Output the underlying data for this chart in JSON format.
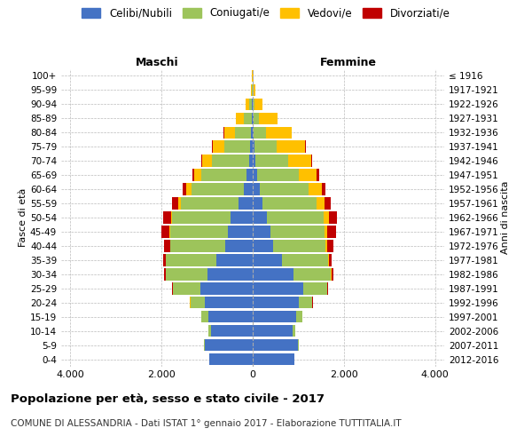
{
  "age_groups": [
    "0-4",
    "5-9",
    "10-14",
    "15-19",
    "20-24",
    "25-29",
    "30-34",
    "35-39",
    "40-44",
    "45-49",
    "50-54",
    "55-59",
    "60-64",
    "65-69",
    "70-74",
    "75-79",
    "80-84",
    "85-89",
    "90-94",
    "95-99",
    "100+"
  ],
  "birth_years": [
    "2012-2016",
    "2007-2011",
    "2002-2006",
    "1997-2001",
    "1992-1996",
    "1987-1991",
    "1982-1986",
    "1977-1981",
    "1972-1976",
    "1967-1971",
    "1962-1966",
    "1957-1961",
    "1952-1956",
    "1947-1951",
    "1942-1946",
    "1937-1941",
    "1932-1936",
    "1927-1931",
    "1922-1926",
    "1917-1921",
    "≤ 1916"
  ],
  "males": {
    "celibi": [
      950,
      1050,
      920,
      980,
      1050,
      1150,
      1000,
      800,
      600,
      550,
      480,
      320,
      200,
      130,
      80,
      60,
      30,
      20,
      10,
      5,
      5
    ],
    "coniugati": [
      5,
      15,
      50,
      150,
      320,
      600,
      900,
      1100,
      1200,
      1250,
      1280,
      1250,
      1150,
      1000,
      820,
      560,
      350,
      170,
      60,
      15,
      3
    ],
    "vedovi": [
      2,
      2,
      2,
      2,
      2,
      4,
      8,
      12,
      15,
      20,
      35,
      60,
      100,
      150,
      200,
      260,
      250,
      180,
      80,
      20,
      5
    ],
    "divorziati": [
      2,
      2,
      3,
      5,
      10,
      20,
      40,
      55,
      120,
      180,
      160,
      130,
      80,
      40,
      25,
      15,
      8,
      5,
      2,
      1,
      1
    ]
  },
  "females": {
    "nubili": [
      910,
      1000,
      880,
      950,
      1020,
      1100,
      900,
      650,
      450,
      380,
      320,
      220,
      150,
      100,
      60,
      40,
      25,
      15,
      8,
      4,
      3
    ],
    "coniugate": [
      4,
      12,
      45,
      140,
      280,
      530,
      820,
      1000,
      1150,
      1200,
      1240,
      1180,
      1080,
      920,
      720,
      480,
      270,
      120,
      40,
      10,
      2
    ],
    "vedove": [
      2,
      2,
      2,
      3,
      4,
      8,
      12,
      18,
      30,
      55,
      110,
      180,
      280,
      380,
      500,
      620,
      560,
      400,
      160,
      50,
      12
    ],
    "divorziate": [
      2,
      2,
      3,
      5,
      12,
      22,
      40,
      55,
      130,
      190,
      170,
      140,
      90,
      50,
      28,
      18,
      10,
      6,
      3,
      2,
      1
    ]
  },
  "colors": {
    "celibi": "#4472C4",
    "coniugati": "#9DC45B",
    "vedovi": "#FFC000",
    "divorziati": "#C00000"
  },
  "xlim": 4200,
  "title": "Popolazione per età, sesso e stato civile - 2017",
  "subtitle": "COMUNE DI ALESSANDRIA - Dati ISTAT 1° gennaio 2017 - Elaborazione TUTTITALIA.IT",
  "xlabel_left": "Maschi",
  "xlabel_right": "Femmine",
  "ylabel": "Fasce di età",
  "right_ylabel": "Anni di nascita",
  "xtick_vals": [
    -4000,
    -2000,
    0,
    2000,
    4000
  ],
  "xtick_labels": [
    "4.000",
    "2.000",
    "0",
    "2.000",
    "4.000"
  ],
  "legend_labels": [
    "Celibi/Nubili",
    "Coniugati/e",
    "Vedovi/e",
    "Divorziati/e"
  ],
  "background_color": "#ffffff",
  "bar_height": 0.85
}
